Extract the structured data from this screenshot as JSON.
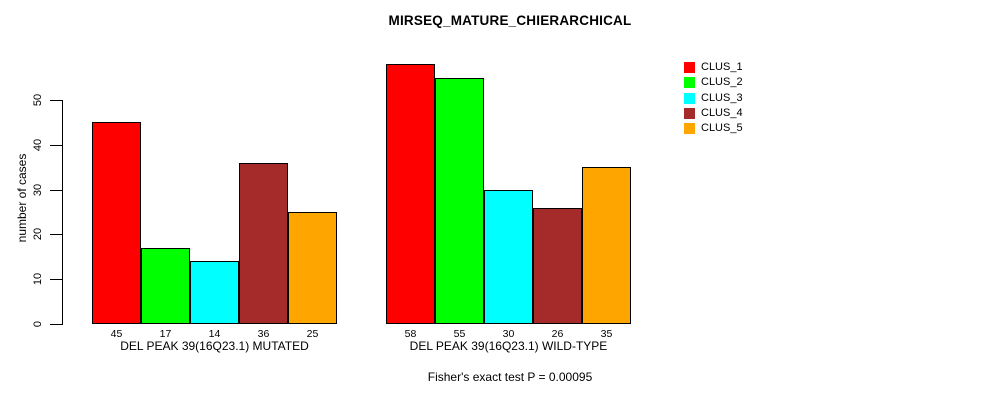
{
  "figure": {
    "title": "MIRSEQ_MATURE_CHIERARCHICAL",
    "footnote": "Fisher's exact test P = 0.00095"
  },
  "chart_data": {
    "type": "bar",
    "title": "MIRSEQ_MATURE_CHIERARCHICAL",
    "xlabel": "",
    "ylabel": "number of cases",
    "ylim": [
      0,
      58
    ],
    "yticks": [
      0,
      10,
      20,
      30,
      40,
      50
    ],
    "grid": false,
    "legend_position": "topright",
    "series": [
      {
        "name": "CLUS_1",
        "color": "#FF0000"
      },
      {
        "name": "CLUS_2",
        "color": "#00FF00"
      },
      {
        "name": "CLUS_3",
        "color": "#00FFFF"
      },
      {
        "name": "CLUS_4",
        "color": "#A52A2A"
      },
      {
        "name": "CLUS_5",
        "color": "#FFA500"
      }
    ],
    "groups": [
      {
        "label": "DEL PEAK 39(16Q23.1) MUTATED",
        "values": [
          45,
          17,
          14,
          36,
          25
        ]
      },
      {
        "label": "DEL PEAK 39(16Q23.1) WILD-TYPE",
        "values": [
          58,
          55,
          30,
          26,
          35
        ]
      }
    ],
    "annotation": "Fisher's exact test P = 0.00095"
  }
}
